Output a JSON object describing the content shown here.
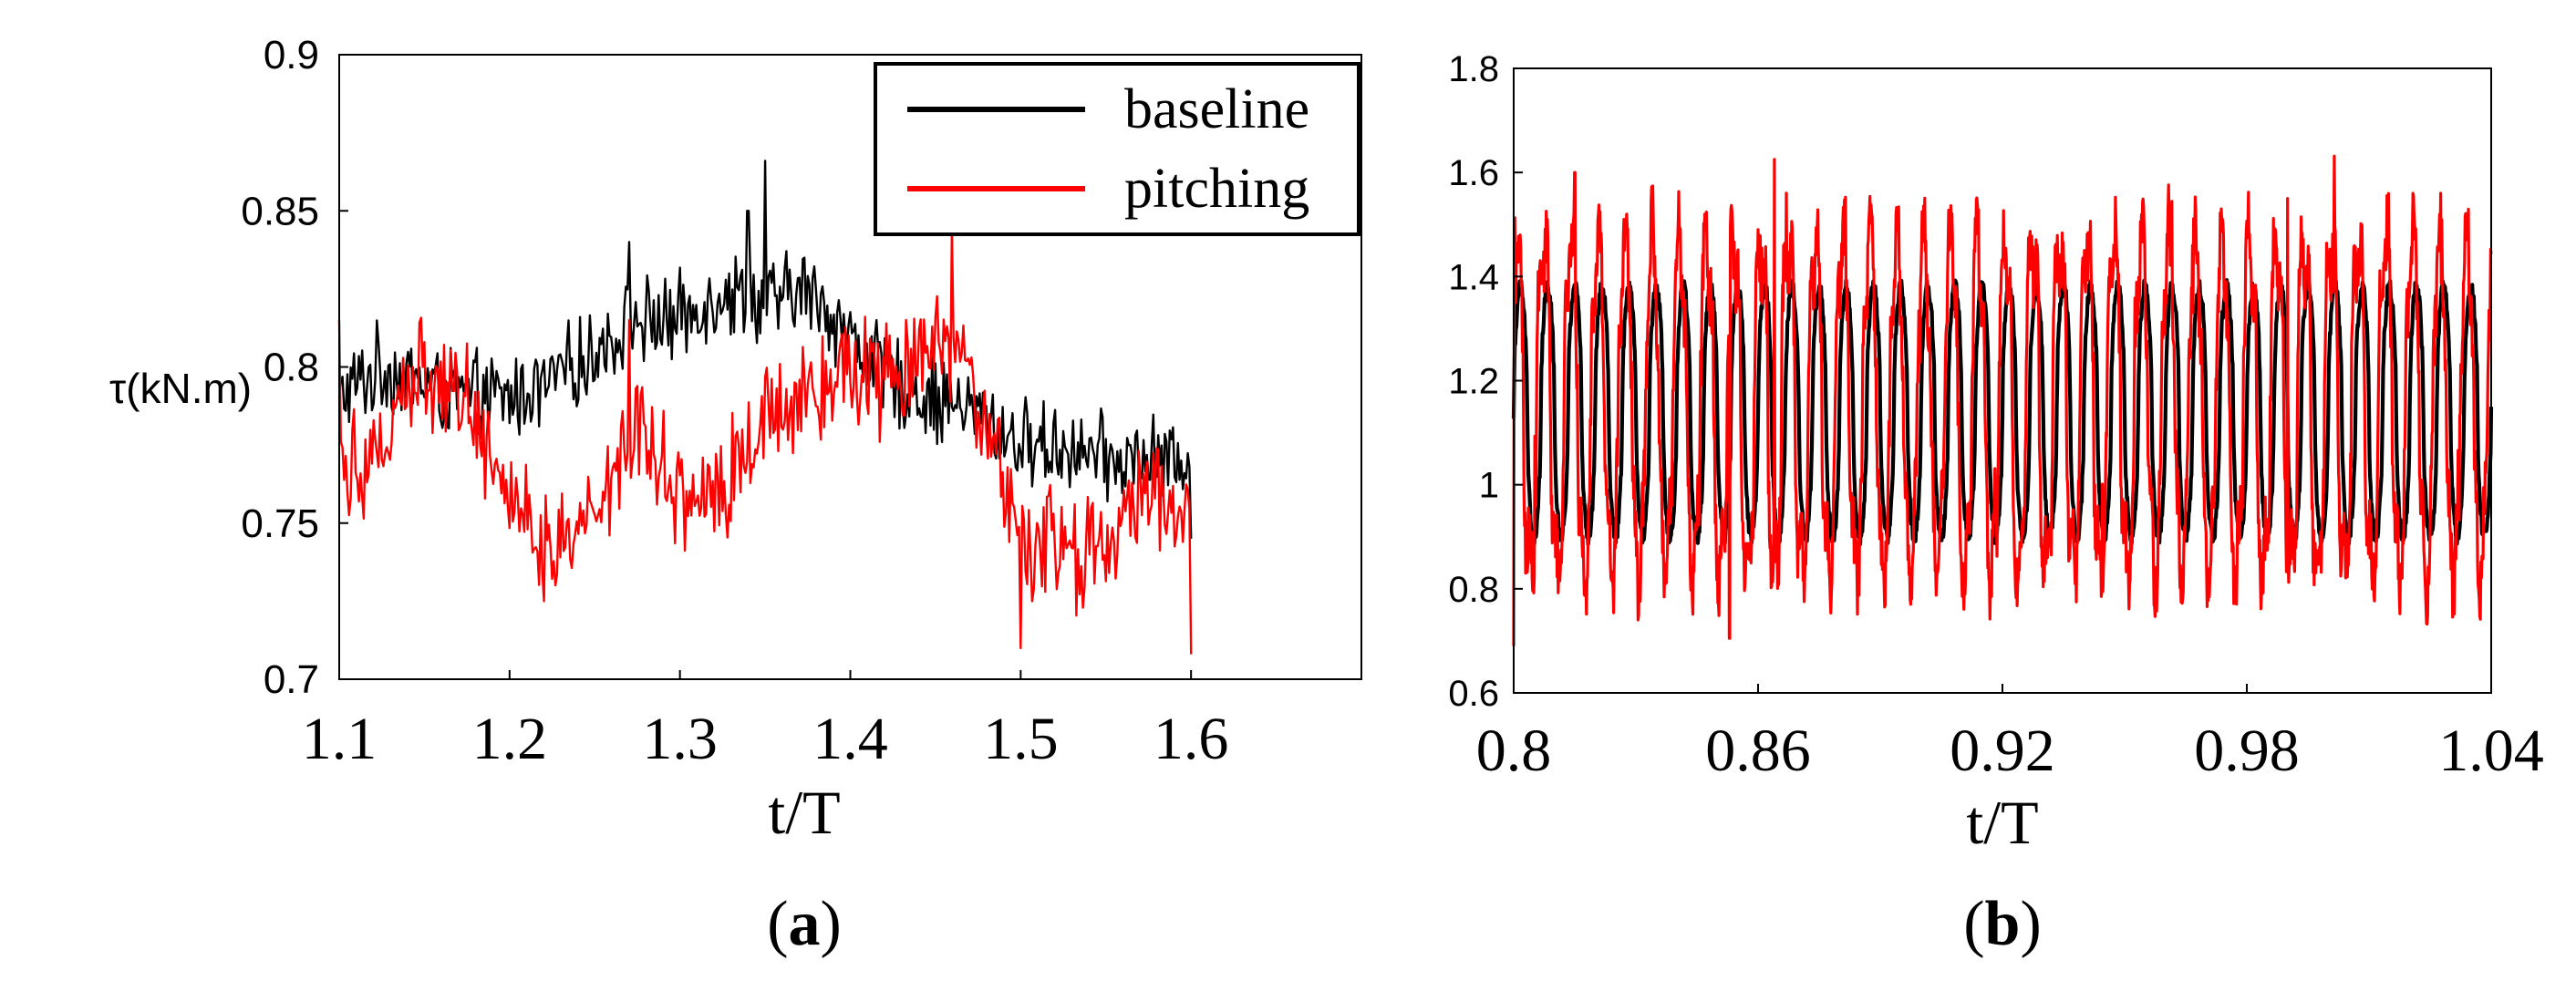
{
  "chart_data": [
    {
      "panel": "(a)",
      "panel_letter": "a",
      "type": "line",
      "xlabel": "t/T",
      "ylabel": "τ(kN.m)",
      "xlim": [
        1.1,
        1.7
      ],
      "ylim": [
        0.7,
        0.9
      ],
      "xticks": [
        "1.1",
        "1.2",
        "1.3",
        "1.4",
        "1.5",
        "1.6"
      ],
      "yticks": [
        "0.7",
        "0.75",
        "0.8",
        "0.85",
        "0.9"
      ],
      "legend": {
        "position": "top-right",
        "entries": [
          "baseline",
          "pitching"
        ]
      },
      "series": [
        {
          "name": "baseline",
          "color": "#000000",
          "x": [
            1.1,
            1.125,
            1.15,
            1.175,
            1.2,
            1.225,
            1.25,
            1.275,
            1.3,
            1.325,
            1.35,
            1.375,
            1.4,
            1.425,
            1.45,
            1.475,
            1.5,
            1.525,
            1.55,
            1.575,
            1.6
          ],
          "values": [
            0.79,
            0.8,
            0.795,
            0.79,
            0.79,
            0.795,
            0.805,
            0.815,
            0.815,
            0.825,
            0.82,
            0.825,
            0.81,
            0.795,
            0.79,
            0.785,
            0.775,
            0.775,
            0.77,
            0.77,
            0.77
          ],
          "noise": 0.012,
          "spikes": [
            [
              1.35,
              0.866
            ],
            [
              1.34,
              0.85
            ],
            [
              1.27,
              0.84
            ],
            [
              1.1,
              0.79
            ],
            [
              1.6,
              0.745
            ]
          ]
        },
        {
          "name": "pitching",
          "color": "#ff0000",
          "x": [
            1.1,
            1.125,
            1.15,
            1.175,
            1.2,
            1.225,
            1.25,
            1.275,
            1.3,
            1.325,
            1.35,
            1.375,
            1.4,
            1.425,
            1.45,
            1.475,
            1.5,
            1.525,
            1.55,
            1.575,
            1.6
          ],
          "values": [
            0.77,
            0.775,
            0.8,
            0.79,
            0.76,
            0.74,
            0.755,
            0.785,
            0.76,
            0.76,
            0.785,
            0.795,
            0.8,
            0.795,
            0.805,
            0.79,
            0.745,
            0.74,
            0.74,
            0.765,
            0.745
          ],
          "noise": 0.016,
          "spikes": [
            [
              1.1,
              0.815
            ],
            [
              1.46,
              0.845
            ],
            [
              1.5,
              0.71
            ],
            [
              1.6,
              0.708
            ],
            [
              1.27,
              0.815
            ],
            [
              1.22,
              0.725
            ]
          ]
        }
      ]
    },
    {
      "panel": "(b)",
      "panel_letter": "b",
      "type": "line",
      "xlabel": "t/T",
      "ylabel": "",
      "xlim": [
        0.8,
        1.04
      ],
      "ylim": [
        0.6,
        1.8
      ],
      "xticks": [
        "0.8",
        "0.86",
        "0.92",
        "0.98",
        "1.04"
      ],
      "yticks": [
        "0.6",
        "0.8",
        "1",
        "1.2",
        "1.4",
        "1.6",
        "1.8"
      ],
      "series": [
        {
          "name": "baseline",
          "color": "#000000",
          "x_range": [
            0.8,
            1.04
          ],
          "cycles": 36,
          "min": 0.9,
          "max": 1.38
        },
        {
          "name": "pitching",
          "color": "#ff0000",
          "x_range": [
            0.8,
            1.04
          ],
          "cycles": 36,
          "min": 0.84,
          "max": 1.46,
          "spikes": [
            [
              0.8,
              0.69
            ],
            [
              0.864,
              1.625
            ],
            [
              0.853,
              0.705
            ],
            [
              0.815,
              1.6
            ],
            [
              0.99,
              1.55
            ]
          ]
        }
      ]
    }
  ]
}
